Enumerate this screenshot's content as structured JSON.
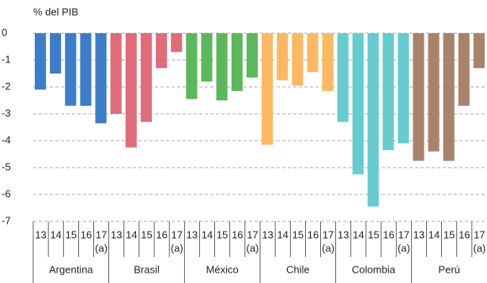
{
  "chart_data": {
    "type": "bar",
    "y_label": "% del PIB",
    "years": [
      "13",
      "14",
      "15",
      "16",
      "17"
    ],
    "year_note": "(a)",
    "series": [
      {
        "name": "Argentina",
        "color": "#3d7cc9",
        "values": [
          -2.1,
          -1.5,
          -2.7,
          -2.7,
          -3.35
        ]
      },
      {
        "name": "Brasil",
        "color": "#e06c7a",
        "values": [
          -3.0,
          -4.25,
          -3.3,
          -1.3,
          -0.7
        ]
      },
      {
        "name": "México",
        "color": "#5cb85c",
        "values": [
          -2.45,
          -1.8,
          -2.5,
          -2.15,
          -1.65
        ]
      },
      {
        "name": "Chile",
        "color": "#fdb863",
        "values": [
          -4.15,
          -1.75,
          -1.95,
          -1.45,
          -2.15
        ]
      },
      {
        "name": "Colombia",
        "color": "#66ccd0",
        "values": [
          -3.3,
          -5.25,
          -6.45,
          -4.35,
          -4.1
        ]
      },
      {
        "name": "Perú",
        "color": "#a9826b",
        "values": [
          -4.75,
          -4.4,
          -4.75,
          -2.7,
          -1.3
        ]
      }
    ],
    "ylim": [
      -7,
      0
    ],
    "yticks": [
      0,
      -1,
      -2,
      -3,
      -4,
      -5,
      -6,
      -7
    ],
    "grid": true
  }
}
